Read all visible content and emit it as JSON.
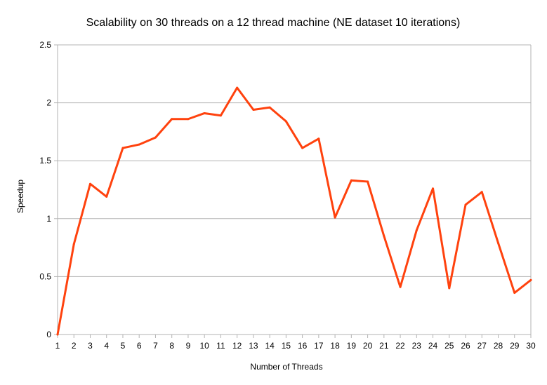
{
  "chart_data": {
    "type": "line",
    "title": "Scalability on 30 threads on a 12 thread machine (NE dataset 10 iterations)",
    "xlabel": "Number of Threads",
    "ylabel": "Speedup",
    "x": [
      1,
      2,
      3,
      4,
      5,
      6,
      7,
      8,
      9,
      10,
      11,
      12,
      13,
      14,
      15,
      16,
      17,
      18,
      19,
      20,
      21,
      22,
      23,
      24,
      25,
      26,
      27,
      28,
      29,
      30
    ],
    "series": [
      {
        "values": [
          0.0,
          0.78,
          1.3,
          1.19,
          1.61,
          1.64,
          1.7,
          1.86,
          1.86,
          1.91,
          1.89,
          2.13,
          1.94,
          1.96,
          1.84,
          1.61,
          1.69,
          1.01,
          1.33,
          1.32,
          0.85,
          0.41,
          0.9,
          1.26,
          0.4,
          1.12,
          1.23,
          0.79,
          0.36,
          0.47
        ],
        "color": "#ff420e"
      }
    ],
    "ylim": [
      0,
      2.5
    ],
    "yticks": [
      "0",
      "0.5",
      "1",
      "1.5",
      "2",
      "2.5"
    ],
    "xticks": [
      "1",
      "2",
      "3",
      "4",
      "5",
      "6",
      "7",
      "8",
      "9",
      "10",
      "11",
      "12",
      "13",
      "14",
      "15",
      "16",
      "17",
      "18",
      "19",
      "20",
      "21",
      "22",
      "23",
      "24",
      "25",
      "26",
      "27",
      "28",
      "29",
      "30"
    ],
    "grid": true,
    "legend": "none",
    "colors": {
      "line": "#ff420e",
      "grid": "#b3b3b3",
      "axis": "#b3b3b3"
    }
  }
}
